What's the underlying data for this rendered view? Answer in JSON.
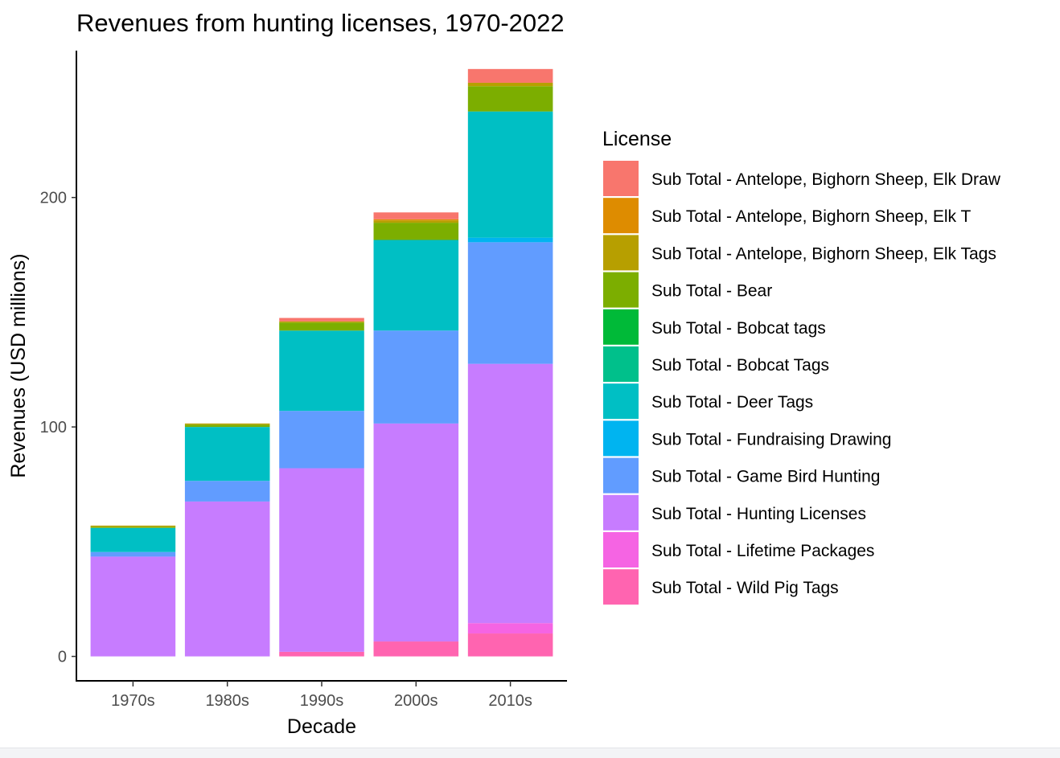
{
  "chart_data": {
    "type": "bar",
    "stacked": true,
    "title": "Revenues from hunting licenses, 1970-2022",
    "xlabel": "Decade",
    "ylabel": "Revenues (USD millions)",
    "categories": [
      "1970s",
      "1980s",
      "1990s",
      "2000s",
      "2010s"
    ],
    "ylim": [
      -11,
      264
    ],
    "yticks": [
      0,
      100,
      200
    ],
    "grid": false,
    "legend_title": "License",
    "legend_position": "right",
    "series": [
      {
        "name": "Sub Total - Antelope, Bighorn Sheep, Elk Draw",
        "color": "#F8766D",
        "values": [
          0,
          0,
          1.5,
          3,
          6
        ]
      },
      {
        "name": "Sub Total - Antelope, Bighorn Sheep, Elk T",
        "color": "#DE8C00",
        "values": [
          0,
          0,
          0,
          0.5,
          0
        ]
      },
      {
        "name": "Sub Total - Antelope, Bighorn Sheep, Elk Tags",
        "color": "#B79F00",
        "values": [
          0.5,
          0.5,
          0.5,
          1,
          1.5
        ]
      },
      {
        "name": "Sub Total - Bear",
        "color": "#7CAE00",
        "values": [
          0.5,
          1,
          3.5,
          7.5,
          11
        ]
      },
      {
        "name": "Sub Total - Bobcat tags",
        "color": "#00BA38",
        "values": [
          0,
          0,
          0,
          0,
          0
        ]
      },
      {
        "name": "Sub Total - Bobcat Tags",
        "color": "#00C08B",
        "values": [
          0,
          0,
          0,
          0,
          0
        ]
      },
      {
        "name": "Sub Total - Deer Tags",
        "color": "#00BFC4",
        "values": [
          10.5,
          23.5,
          35,
          39.5,
          55
        ]
      },
      {
        "name": "Sub Total - Fundraising Drawing",
        "color": "#00B4F0",
        "values": [
          0,
          0,
          0,
          0,
          2
        ]
      },
      {
        "name": "Sub Total - Game Bird Hunting",
        "color": "#619CFF",
        "values": [
          2,
          9,
          25,
          40.5,
          53
        ]
      },
      {
        "name": "Sub Total - Hunting Licenses",
        "color": "#C77CFF",
        "values": [
          43.5,
          67.5,
          80,
          95,
          113
        ]
      },
      {
        "name": "Sub Total - Lifetime Packages",
        "color": "#F564E3",
        "values": [
          0,
          0,
          0,
          0,
          4.5
        ]
      },
      {
        "name": "Sub Total - Wild Pig Tags",
        "color": "#FF64B0",
        "values": [
          0,
          0,
          2,
          6.5,
          10
        ]
      }
    ]
  }
}
